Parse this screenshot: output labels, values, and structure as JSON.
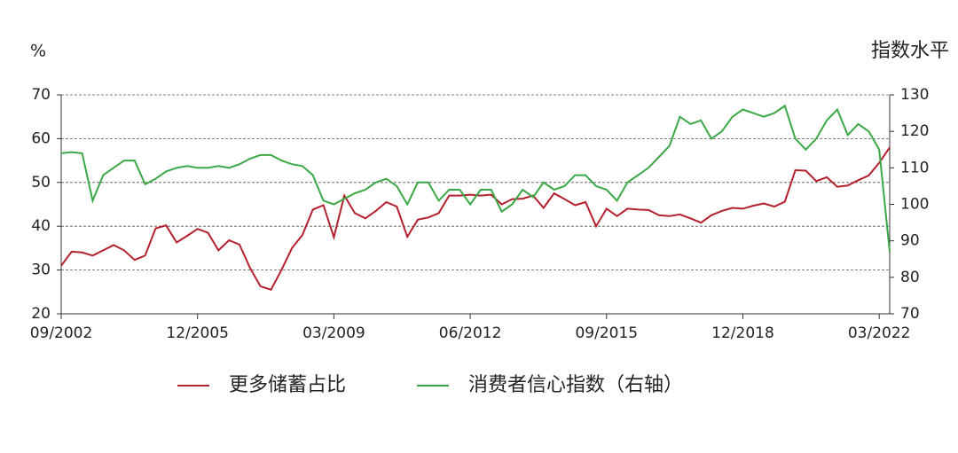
{
  "chart_data": {
    "type": "line",
    "y_label": "%",
    "y2_label": "指数水平",
    "categories": [
      "09/2002",
      null,
      null,
      null,
      null,
      null,
      null,
      null,
      null,
      null,
      null,
      null,
      null,
      "12/2005",
      null,
      null,
      null,
      null,
      null,
      null,
      null,
      null,
      null,
      null,
      null,
      null,
      "03/2009",
      null,
      null,
      null,
      null,
      null,
      null,
      null,
      null,
      null,
      null,
      null,
      null,
      "06/2012",
      null,
      null,
      null,
      null,
      null,
      null,
      null,
      null,
      null,
      null,
      null,
      null,
      "09/2015",
      null,
      null,
      null,
      null,
      null,
      null,
      null,
      null,
      null,
      null,
      null,
      null,
      "12/2018",
      null,
      null,
      null,
      null,
      null,
      null,
      null,
      null,
      null,
      null,
      null,
      null,
      "03/2022",
      null
    ],
    "ylim": [
      20,
      70
    ],
    "yticks": [
      20,
      30,
      40,
      50,
      60,
      70
    ],
    "y2lim": [
      70,
      130
    ],
    "y2ticks": [
      70,
      80,
      90,
      100,
      110,
      120,
      130
    ],
    "grid": true,
    "series": [
      {
        "name": "更多储蓄占比",
        "color": "#b5202e",
        "values": [
          31,
          34.2,
          34,
          33.3,
          34.5,
          35.7,
          34.5,
          32.3,
          33.3,
          39.5,
          40.2,
          36.3,
          37.8,
          39.4,
          38.5,
          34.5,
          36.8,
          35.8,
          30.5,
          26.3,
          25.5,
          30,
          35,
          38,
          43.8,
          44.8,
          37.5,
          47,
          43,
          41.8,
          43.5,
          45.5,
          44.5,
          37.6,
          41.5,
          42,
          43,
          47,
          47,
          47.2,
          47,
          47.2,
          45,
          46.2,
          46.3,
          47,
          44.2,
          47.5,
          46.2,
          44.8,
          45.5,
          40,
          44,
          42.3,
          44,
          43.8,
          43.7,
          42.5,
          42.3,
          42.7,
          41.8,
          40.8,
          42.5,
          43.5,
          44.2,
          44,
          44.7,
          45.2,
          44.5,
          45.6,
          52.8,
          52.7,
          50.3,
          51.2,
          49,
          49.3,
          50.5,
          51.6,
          54.5,
          58
        ]
      },
      {
        "name": "消费者信心指数（右轴）",
        "color": "#3aa845",
        "axis": "y2",
        "values": [
          114,
          114.3,
          114,
          101,
          108,
          110,
          112,
          112,
          105.5,
          107,
          109,
          110,
          110.5,
          110,
          110,
          110.5,
          110,
          111,
          112.5,
          113.5,
          113.5,
          112,
          111,
          110.5,
          108,
          101,
          100,
          101.5,
          103,
          104,
          106,
          107,
          105,
          100,
          106,
          106,
          101,
          104,
          104,
          100,
          104,
          104,
          98,
          100,
          104,
          102,
          106,
          104,
          105,
          108,
          108,
          105,
          104,
          101,
          106,
          108,
          110,
          113,
          116,
          124,
          122,
          123,
          118,
          120,
          124,
          126,
          125,
          124,
          125,
          127,
          118,
          115,
          118,
          123,
          126,
          119,
          122,
          120,
          115,
          87
        ]
      }
    ]
  }
}
